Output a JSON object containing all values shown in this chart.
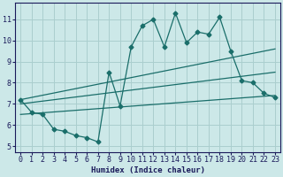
{
  "xlabel": "Humidex (Indice chaleur)",
  "bg_color": "#cce8e8",
  "grid_color": "#aacece",
  "line_color": "#1a6e6a",
  "xlim": [
    -0.5,
    23.5
  ],
  "ylim": [
    4.7,
    11.8
  ],
  "yticks": [
    5,
    6,
    7,
    8,
    9,
    10,
    11
  ],
  "xticks": [
    0,
    1,
    2,
    3,
    4,
    5,
    6,
    7,
    8,
    9,
    10,
    11,
    12,
    13,
    14,
    15,
    16,
    17,
    18,
    19,
    20,
    21,
    22,
    23
  ],
  "series1_x": [
    0,
    1,
    2,
    3,
    4,
    5,
    6,
    7,
    8,
    9,
    10,
    11,
    12,
    13,
    14,
    15,
    16,
    17,
    18,
    19,
    20,
    21,
    22,
    23
  ],
  "series1_y": [
    7.2,
    6.6,
    6.5,
    5.8,
    5.7,
    5.5,
    5.4,
    5.2,
    8.5,
    6.9,
    9.7,
    10.7,
    11.0,
    9.7,
    11.3,
    9.9,
    10.4,
    10.3,
    11.1,
    9.5,
    8.1,
    8.0,
    7.5,
    7.3
  ],
  "trend1_x": [
    0,
    23
  ],
  "trend1_y": [
    7.2,
    9.6
  ],
  "trend2_x": [
    0,
    23
  ],
  "trend2_y": [
    7.0,
    8.5
  ],
  "trend3_x": [
    0,
    23
  ],
  "trend3_y": [
    6.5,
    7.4
  ]
}
